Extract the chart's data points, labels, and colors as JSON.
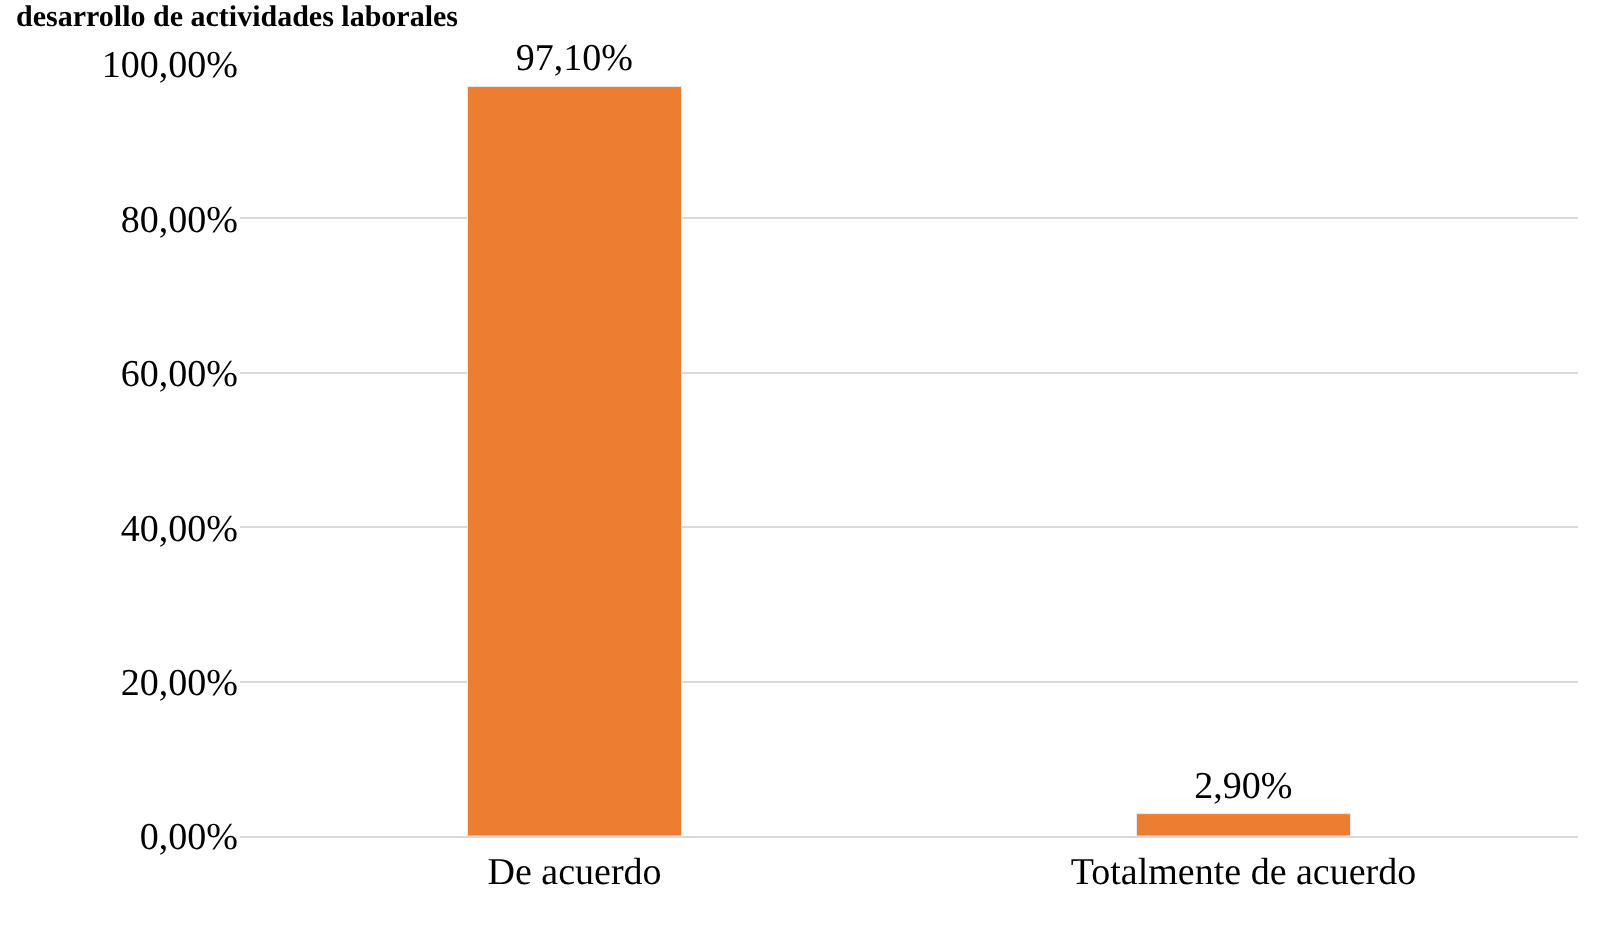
{
  "chart_data": {
    "type": "bar",
    "title": "desarrollo de actividades laborales",
    "categories": [
      "De acuerdo",
      "Totalmente de acuerdo"
    ],
    "values": [
      97.1,
      2.9
    ],
    "color": "#ed7d31",
    "value_labels": [
      "97,10%",
      "2,90%"
    ],
    "ylim": [
      0,
      100
    ],
    "yticks": [
      {
        "value": 0,
        "label": "0,00%"
      },
      {
        "value": 20,
        "label": "20,00%"
      },
      {
        "value": 40,
        "label": "40,00%"
      },
      {
        "value": 60,
        "label": "60,00%"
      },
      {
        "value": 80,
        "label": "80,00%"
      },
      {
        "value": 100,
        "label": "100,00%"
      }
    ],
    "grid": "y",
    "legend": false
  }
}
